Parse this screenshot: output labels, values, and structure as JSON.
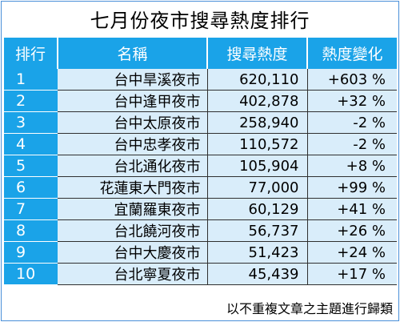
{
  "title": "七月份夜市搜尋熱度排行",
  "headers": {
    "rank": "排行",
    "name": "名稱",
    "heat": "搜尋熱度",
    "change": "熱度變化"
  },
  "rows": [
    {
      "rank": "1",
      "name": "台中旱溪夜市",
      "heat": "620,110",
      "change": "+603 %"
    },
    {
      "rank": "2",
      "name": "台中逢甲夜市",
      "heat": "402,878",
      "change": "+32 %"
    },
    {
      "rank": "3",
      "name": "台中太原夜市",
      "heat": "258,940",
      "change": "-2 %"
    },
    {
      "rank": "4",
      "name": "台中忠孝夜市",
      "heat": "110,572",
      "change": "-2 %"
    },
    {
      "rank": "5",
      "name": "台北通化夜市",
      "heat": "105,904",
      "change": "+8 %"
    },
    {
      "rank": "6",
      "name": "花蓮東大門夜市",
      "heat": "77,000",
      "change": "+99 %"
    },
    {
      "rank": "7",
      "name": "宜蘭羅東夜市",
      "heat": "60,129",
      "change": "+41 %"
    },
    {
      "rank": "8",
      "name": "台北饒河夜市",
      "heat": "56,737",
      "change": "+26 %"
    },
    {
      "rank": "9",
      "name": "台中大慶夜市",
      "heat": "51,423",
      "change": "+24 %"
    },
    {
      "rank": "10",
      "name": "台北寧夏夜市",
      "heat": "45,439",
      "change": "+17 %"
    }
  ],
  "footer": "以不重複文章之主題進行歸類",
  "colors": {
    "header_bg": "#1aa3e8",
    "cell_bg": "#d9edfa",
    "border": "#4a90d9"
  }
}
